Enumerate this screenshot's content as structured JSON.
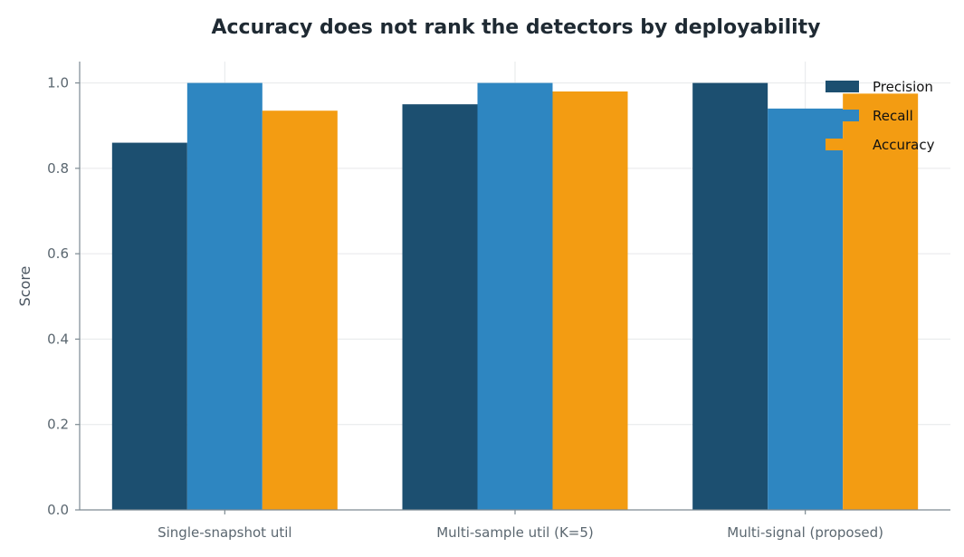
{
  "chart_data": {
    "type": "bar",
    "title": "Accuracy does not rank the detectors by deployability",
    "xlabel": "",
    "ylabel": "Score",
    "ylim": [
      0,
      1.05
    ],
    "yticks": [
      "0.0",
      "0.2",
      "0.4",
      "0.6",
      "0.8",
      "1.0"
    ],
    "categories": [
      "Single-snapshot util",
      "Multi-sample util (K=5)",
      "Multi-signal (proposed)"
    ],
    "series": [
      {
        "name": "Precision",
        "color": "#1c4f70",
        "values": [
          0.86,
          0.95,
          1.0
        ]
      },
      {
        "name": "Recall",
        "color": "#2e86c1",
        "values": [
          1.0,
          1.0,
          0.94
        ]
      },
      {
        "name": "Accuracy",
        "color": "#f39c12",
        "values": [
          0.935,
          0.98,
          0.975
        ]
      }
    ],
    "grid": true,
    "legend_position": "top-right"
  }
}
